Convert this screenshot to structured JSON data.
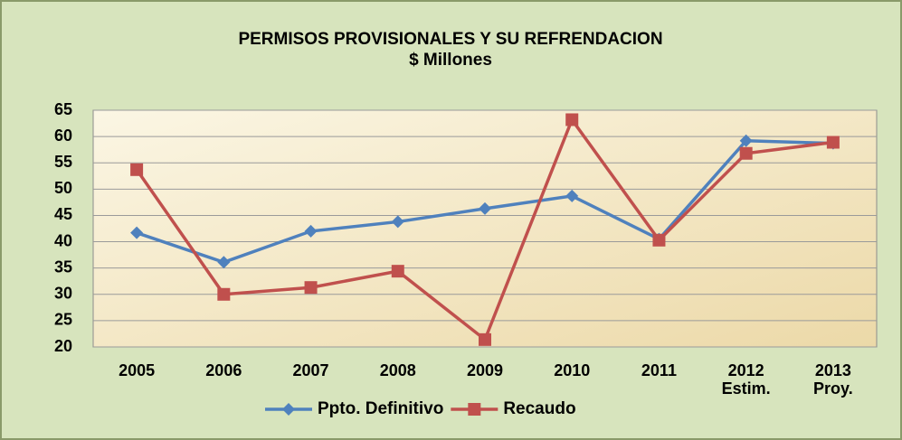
{
  "chart_data": {
    "type": "line",
    "title": "PERMISOS PROVISIONALES Y SU REFRENDACION",
    "subtitle": "$ Millones",
    "categories": [
      "2005",
      "2006",
      "2007",
      "2008",
      "2009",
      "2010",
      "2011",
      "2012\nEstim.",
      "2013\nProy."
    ],
    "series": [
      {
        "name": "Ppto. Definitivo",
        "color": "#4f81bd",
        "marker": "diamond",
        "values": [
          41.7,
          36.1,
          42.0,
          43.8,
          46.3,
          48.7,
          40.5,
          59.2,
          58.7
        ]
      },
      {
        "name": "Recaudo",
        "color": "#c0504d",
        "marker": "square",
        "values": [
          53.7,
          30.0,
          31.3,
          34.4,
          21.4,
          63.2,
          40.3,
          56.8,
          58.9
        ]
      }
    ],
    "ylim": [
      20,
      65
    ],
    "yticks": [
      20,
      25,
      30,
      35,
      40,
      45,
      50,
      55,
      60,
      65
    ],
    "grid": true,
    "legend": "bottom"
  }
}
